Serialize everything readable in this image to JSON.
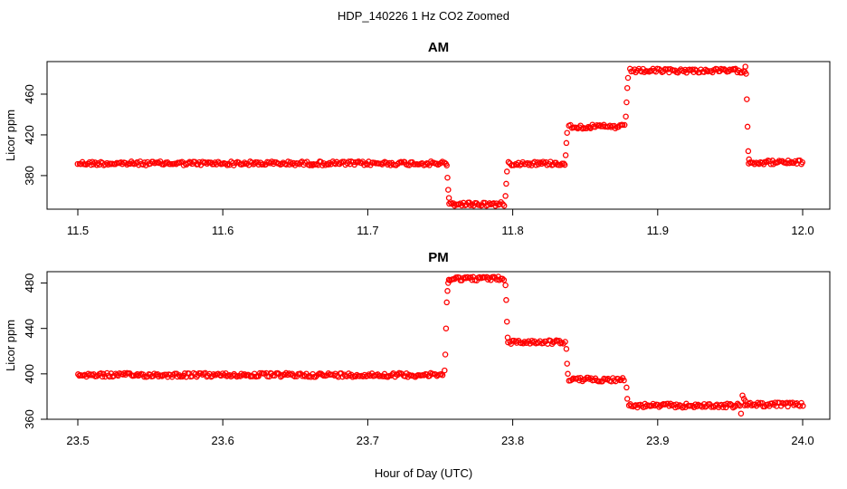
{
  "figure": {
    "suptitle": "HDP_140226  1 Hz CO2 Zoomed",
    "xlabel": "Hour of Day (UTC)"
  },
  "colors": {
    "points": "#ff0000",
    "axis": "#000000"
  },
  "chart_data": [
    {
      "type": "scatter",
      "title": "AM",
      "ylabel": "Licor ppm",
      "xlim": [
        11.5,
        12.0
      ],
      "ylim": [
        347,
        492
      ],
      "xticks": [
        "11.5",
        "11.6",
        "11.7",
        "11.8",
        "11.9",
        "12.0"
      ],
      "xtick_values": [
        11.5,
        11.6,
        11.7,
        11.8,
        11.9,
        12.0
      ],
      "yticks": [
        "380",
        "420",
        "460"
      ],
      "ytick_values": [
        380,
        420,
        460
      ],
      "marker": "open-circle",
      "segments": [
        {
          "x": [
            11.5,
            11.754
          ],
          "y": 392
        },
        {
          "x": [
            11.756,
            11.794
          ],
          "y": 352
        },
        {
          "x": [
            11.797,
            11.836
          ],
          "y": 392
        },
        {
          "x": [
            11.839,
            11.877
          ],
          "y": 428
        },
        {
          "x": [
            11.881,
            11.96
          ],
          "y": 483
        },
        {
          "x": [
            11.963,
            12.0
          ],
          "y": 393
        }
      ],
      "transitions": [
        [
          11.7545,
          390
        ],
        [
          11.755,
          378
        ],
        [
          11.7555,
          366
        ],
        [
          11.756,
          358
        ],
        [
          11.795,
          360
        ],
        [
          11.7955,
          372
        ],
        [
          11.796,
          384
        ],
        [
          11.8365,
          400
        ],
        [
          11.837,
          412
        ],
        [
          11.8375,
          422
        ],
        [
          11.878,
          438
        ],
        [
          11.8785,
          452
        ],
        [
          11.879,
          466
        ],
        [
          11.8795,
          476
        ],
        [
          11.9605,
          487
        ],
        [
          11.961,
          480
        ],
        [
          11.9615,
          455
        ],
        [
          11.962,
          428
        ],
        [
          11.9625,
          404
        ],
        [
          11.963,
          396
        ]
      ]
    },
    {
      "type": "scatter",
      "title": "PM",
      "ylabel": "Licor ppm",
      "xlim": [
        23.5,
        24.0
      ],
      "ylim": [
        360,
        490
      ],
      "xticks": [
        "23.5",
        "23.6",
        "23.7",
        "23.8",
        "23.9",
        "24.0"
      ],
      "xtick_values": [
        23.5,
        23.6,
        23.7,
        23.8,
        23.9,
        24.0
      ],
      "yticks": [
        "360",
        "400",
        "440",
        "480"
      ],
      "ytick_values": [
        360,
        400,
        440,
        480
      ],
      "marker": "open-circle",
      "segments": [
        {
          "x": [
            23.5,
            23.752
          ],
          "y": 399
        },
        {
          "x": [
            23.756,
            23.794
          ],
          "y": 484
        },
        {
          "x": [
            23.797,
            23.836
          ],
          "y": 428
        },
        {
          "x": [
            23.839,
            23.877
          ],
          "y": 395
        },
        {
          "x": [
            23.88,
            23.957
          ],
          "y": 372
        },
        {
          "x": [
            23.96,
            24.0
          ],
          "y": 373
        }
      ],
      "transitions": [
        [
          23.753,
          403
        ],
        [
          23.7535,
          417
        ],
        [
          23.754,
          440
        ],
        [
          23.7545,
          463
        ],
        [
          23.755,
          473
        ],
        [
          23.7555,
          480
        ],
        [
          23.795,
          478
        ],
        [
          23.7955,
          465
        ],
        [
          23.796,
          446
        ],
        [
          23.7965,
          432
        ],
        [
          23.837,
          422
        ],
        [
          23.8375,
          409
        ],
        [
          23.838,
          400
        ],
        [
          23.8785,
          388
        ],
        [
          23.879,
          378
        ],
        [
          23.9575,
          365
        ],
        [
          23.9585,
          381
        ],
        [
          23.9595,
          378
        ],
        [
          23.9605,
          376
        ]
      ]
    }
  ]
}
